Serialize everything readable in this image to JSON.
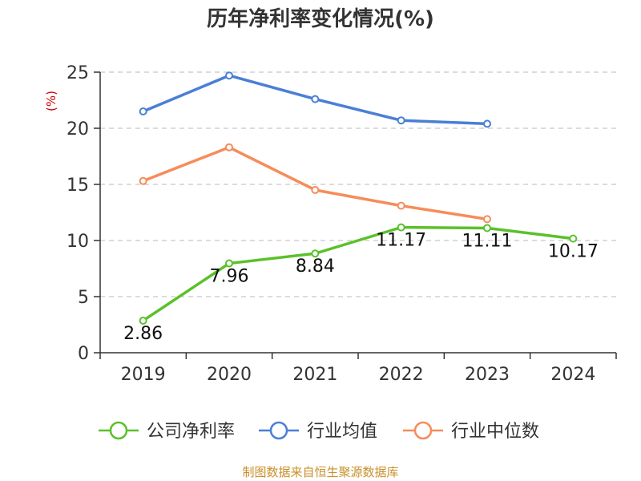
{
  "chart_data": {
    "type": "line",
    "title": "历年净利率变化情况(%)",
    "ylabel": "(%)",
    "xlabel": "",
    "categories": [
      "2019",
      "2020",
      "2021",
      "2022",
      "2023",
      "2024"
    ],
    "ylim": [
      0,
      25
    ],
    "yticks": [
      0,
      5,
      10,
      15,
      20,
      25
    ],
    "grid": true,
    "legend_position": "bottom",
    "series": [
      {
        "name": "公司净利率",
        "color": "#5ac12a",
        "values": [
          2.86,
          7.96,
          8.84,
          11.17,
          11.11,
          10.17
        ],
        "labels": [
          "2.86",
          "7.96",
          "8.84",
          "11.17",
          "11.11",
          "10.17"
        ]
      },
      {
        "name": "行业均值",
        "color": "#4a7fd6",
        "values": [
          21.5,
          24.7,
          22.6,
          20.7,
          20.4,
          null
        ]
      },
      {
        "name": "行业中位数",
        "color": "#f68c5a",
        "values": [
          15.3,
          18.3,
          14.5,
          13.1,
          11.9,
          null
        ]
      }
    ]
  },
  "source_note": "制图数据来自恒生聚源数据库"
}
